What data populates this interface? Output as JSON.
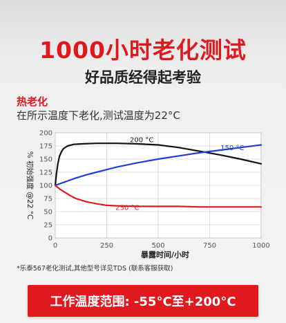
{
  "page": {
    "headline": "1000小时老化测试",
    "subheadline": "好品质经得起考验",
    "section_title": "热老化",
    "section_desc": "在所示温度下老化,测试温度为22°C",
    "footnote": "*乐泰567老化测试,其他型号详见TDS (联系客服获取)",
    "banner": "工作温度范围: -55°C至+200°C"
  },
  "colors": {
    "accent": "#e0191e",
    "series_200": "#111111",
    "series_150": "#1f3fd6",
    "series_250": "#e0191e"
  },
  "chart_data": {
    "type": "line",
    "xlabel": "暴露时间/小时",
    "ylabel": "% 初始强度 @22 °C",
    "xlim": [
      0,
      1000
    ],
    "ylim": [
      0,
      200
    ],
    "xticks": [
      0,
      250,
      500,
      750,
      1000
    ],
    "yticks": [
      0,
      25,
      50,
      75,
      100,
      125,
      150,
      175,
      200
    ],
    "grid": true,
    "series": [
      {
        "name": "200 °C",
        "color": "#111111",
        "x": [
          0,
          5,
          12,
          20,
          30,
          40,
          60,
          90,
          130,
          200,
          300,
          400,
          500,
          600,
          700,
          800,
          900,
          1000
        ],
        "y": [
          100,
          120,
          140,
          155,
          164,
          170,
          175,
          178,
          179,
          180,
          180,
          179,
          177,
          172,
          165,
          158,
          150,
          141
        ]
      },
      {
        "name": "150 °C",
        "color": "#1f3fd6",
        "x": [
          0,
          50,
          100,
          150,
          200,
          250,
          300,
          400,
          500,
          600,
          700,
          800,
          900,
          1000
        ],
        "y": [
          100,
          107,
          114,
          120,
          125,
          130,
          135,
          143,
          150,
          156,
          162,
          167,
          172,
          177
        ]
      },
      {
        "name": "250 °C",
        "color": "#e0191e",
        "x": [
          0,
          25,
          50,
          75,
          100,
          150,
          200,
          250,
          300,
          400,
          500,
          600,
          700,
          800,
          900,
          1000
        ],
        "y": [
          100,
          92,
          86,
          80,
          75,
          69,
          65,
          62,
          61,
          60,
          60,
          60,
          59,
          59,
          59,
          59
        ]
      }
    ],
    "annotations": [
      {
        "text": "200 °C",
        "x": 420,
        "y": 182,
        "color": "#111111"
      },
      {
        "text": "150 °C",
        "x": 860,
        "y": 167,
        "color": "#1f3fd6"
      },
      {
        "text": "250 °C",
        "x": 350,
        "y": 53,
        "color": "#e0191e"
      }
    ]
  }
}
